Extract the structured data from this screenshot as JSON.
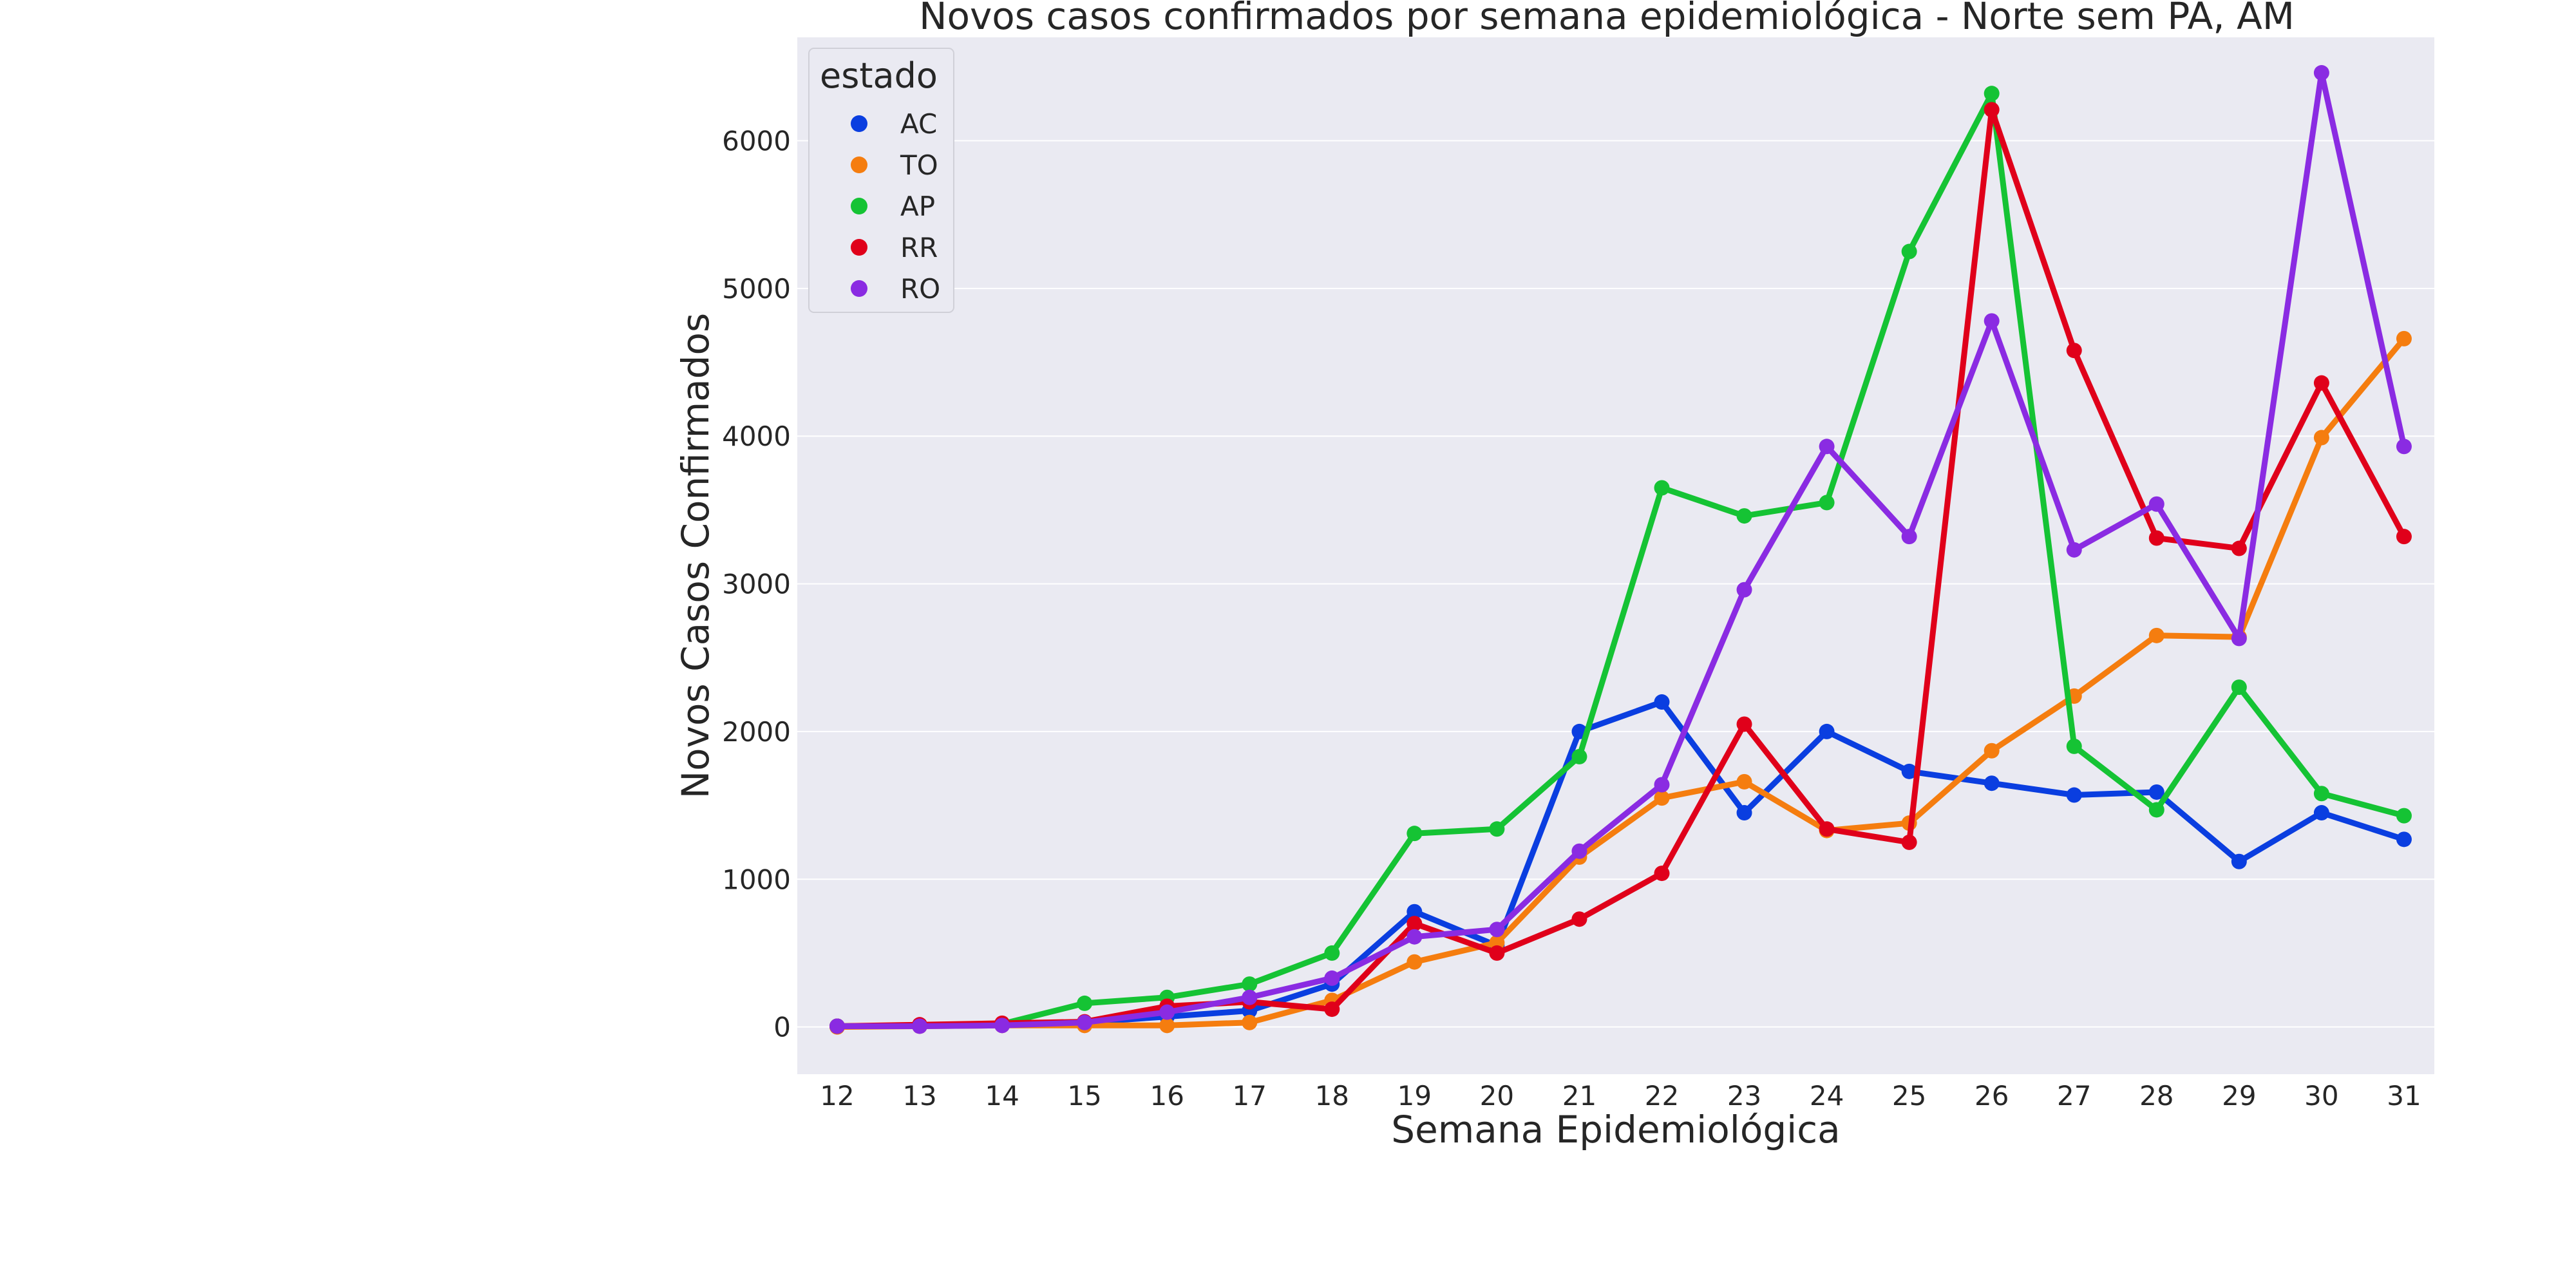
{
  "chart_data": {
    "type": "line",
    "title": "Novos casos confirmados por semana epidemiológica - Norte sem PA, AM",
    "xlabel": "Semana Epidemiológica",
    "ylabel": "Novos Casos Confirmados",
    "categories": [
      "12",
      "13",
      "14",
      "15",
      "16",
      "17",
      "18",
      "19",
      "20",
      "21",
      "22",
      "23",
      "24",
      "25",
      "26",
      "27",
      "28",
      "29",
      "30",
      "31"
    ],
    "yticks": [
      0,
      1000,
      2000,
      3000,
      4000,
      5000,
      6000
    ],
    "ylim": [
      -320,
      6700
    ],
    "grid": true,
    "legend": {
      "title": "estado",
      "placement": "top-left"
    },
    "series": [
      {
        "name": "AC",
        "color": "#0a3ee0",
        "values": [
          5,
          10,
          15,
          30,
          70,
          110,
          290,
          780,
          550,
          2000,
          2200,
          1450,
          2000,
          1730,
          1650,
          1570,
          1590,
          1120,
          1450,
          1270
        ]
      },
      {
        "name": "TO",
        "color": "#f57d0f",
        "values": [
          0,
          5,
          10,
          10,
          10,
          30,
          180,
          440,
          570,
          1150,
          1550,
          1660,
          1330,
          1380,
          1870,
          2240,
          2650,
          2640,
          3990,
          4660
        ]
      },
      {
        "name": "AP",
        "color": "#15c334",
        "values": [
          5,
          10,
          20,
          160,
          200,
          290,
          500,
          1310,
          1340,
          1830,
          3650,
          3460,
          3550,
          5250,
          6320,
          1900,
          1470,
          2300,
          1580,
          1430
        ]
      },
      {
        "name": "RR",
        "color": "#e0001a",
        "values": [
          5,
          15,
          25,
          35,
          140,
          170,
          120,
          700,
          500,
          730,
          1040,
          2050,
          1340,
          1250,
          6210,
          4580,
          3310,
          3240,
          4360,
          3320
        ]
      },
      {
        "name": "RO",
        "color": "#8a2be2",
        "values": [
          5,
          5,
          10,
          30,
          100,
          200,
          330,
          610,
          660,
          1190,
          1640,
          2960,
          3930,
          3320,
          4780,
          3230,
          3540,
          2630,
          6460,
          3930
        ]
      }
    ]
  }
}
